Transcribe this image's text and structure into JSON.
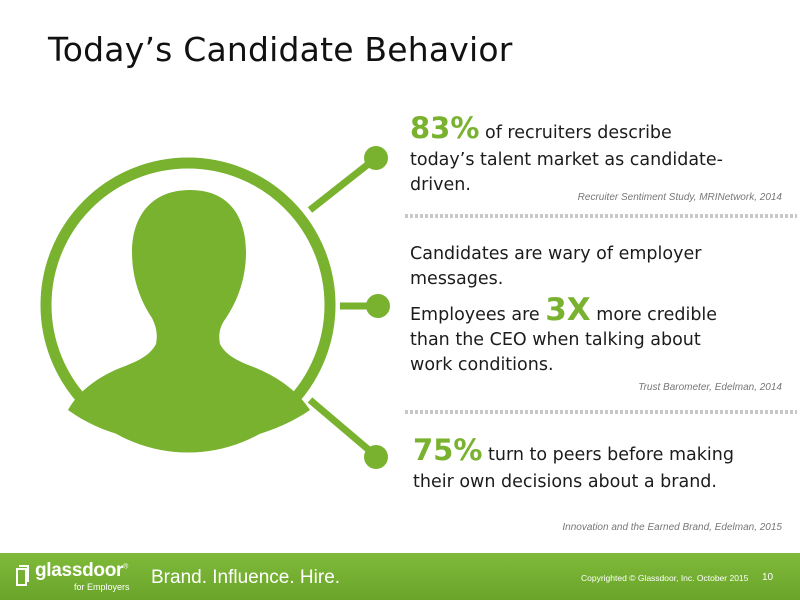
{
  "slide": {
    "title": "Today’s Candidate Behavior"
  },
  "stats": [
    {
      "highlight": "83%",
      "text_after": " of recruiters describe",
      "text_line2": "today’s talent market as candidate-",
      "text_line3": "driven.",
      "source": "Recruiter Sentiment Study, MRINetwork, 2014"
    },
    {
      "text_line1": "Candidates are wary of employer",
      "text_line2": "messages.",
      "text_before": "Employees are ",
      "highlight": "3X",
      "text_after": " more credible",
      "text_line4": "than the CEO when talking about",
      "text_line5": "work conditions.",
      "source": "Trust Barometer, Edelman, 2014"
    },
    {
      "highlight": "75%",
      "text_after": " turn to peers before making",
      "text_line2": "their own decisions about a brand.",
      "source": "Innovation and the Earned Brand, Edelman, 2015"
    }
  ],
  "footer": {
    "logo_word": "glassdoor",
    "logo_mark": "®",
    "logo_sub": "for Employers",
    "tagline": "Brand. Influence. Hire.",
    "copyright": "Copyrighted © Glassdoor, Inc. October 2015",
    "page_number": "10"
  },
  "colors": {
    "accent_green": "#79b22f",
    "footer_green": "#74b034",
    "source_gray": "#777777"
  },
  "icons": [
    "person-silhouette-icon",
    "connector-node-icon",
    "glassdoor-logo-icon"
  ]
}
